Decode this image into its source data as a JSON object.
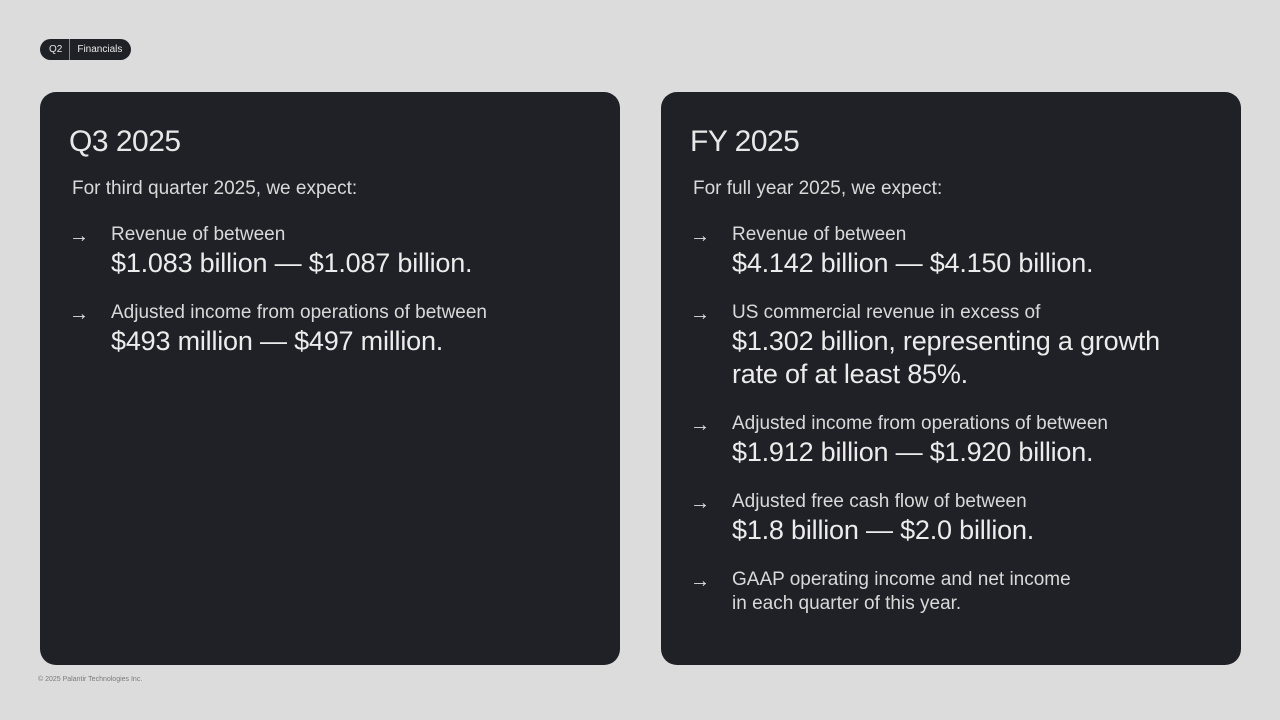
{
  "tag": {
    "quarter": "Q2",
    "section": "Financials"
  },
  "q3": {
    "title": "Q3 2025",
    "intro": "For third quarter 2025, we expect:",
    "items": [
      {
        "label": "Revenue of between",
        "value": "$1.083 billion — $1.087 billion."
      },
      {
        "label": "Adjusted income from operations of between",
        "value": "$493 million — $497 million."
      }
    ]
  },
  "fy": {
    "title": "FY 2025",
    "intro": "For full year 2025, we expect:",
    "items": [
      {
        "label": "Revenue of between",
        "value": "$4.142 billion — $4.150 billion."
      },
      {
        "label": "US commercial revenue in excess of",
        "value": "$1.302 billion, representing a growth",
        "value2": "rate of at least 85%."
      },
      {
        "label": "Adjusted income from operations of between",
        "value": "$1.912 billion — $1.920 billion."
      },
      {
        "label": "Adjusted free cash flow of between",
        "value": "$1.8 billion — $2.0 billion."
      },
      {
        "line1": "GAAP operating income and net income",
        "line2": "in each quarter of this year."
      }
    ]
  },
  "arrow_icon": "→",
  "footer": "© 2025 Palantir Technologies Inc."
}
